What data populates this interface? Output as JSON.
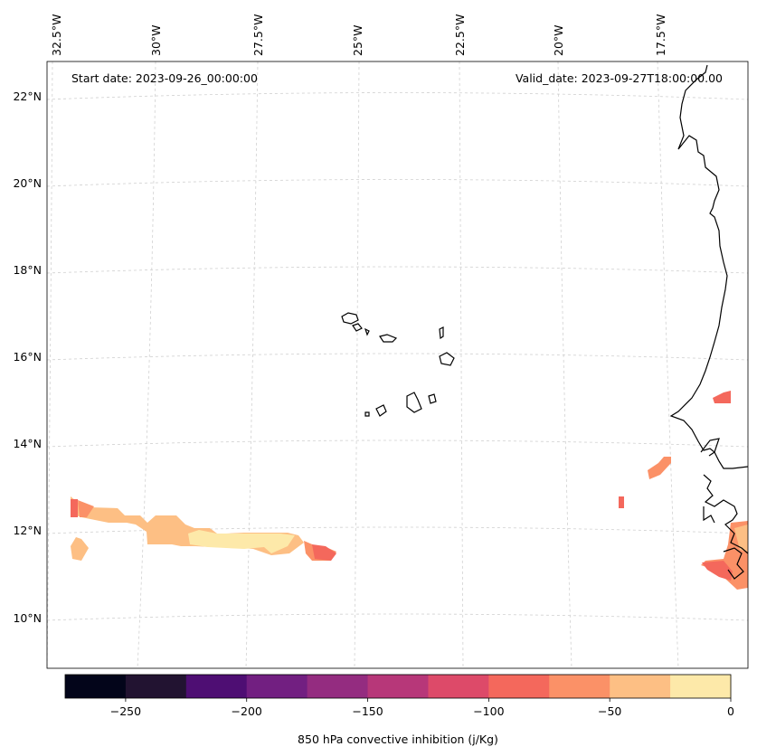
{
  "header": {
    "start_date": "Start date: 2023-09-26_00:00:00",
    "valid_date": "Valid_date: 2023-09-27T18:00:00.00"
  },
  "longitude_labels": [
    "32.5°W",
    "30°W",
    "27.5°W",
    "25°W",
    "22.5°W",
    "20°W",
    "17.5°W"
  ],
  "latitude_labels": [
    "22°N",
    "20°N",
    "18°N",
    "16°N",
    "14°N",
    "12°N",
    "10°N"
  ],
  "colorbar": {
    "label": "850 hPa convective inhibition (j/Kg)",
    "tick_labels": [
      "−250",
      "−200",
      "−150",
      "−100",
      "−50",
      "0"
    ],
    "levels": [
      -275,
      -250,
      -225,
      -200,
      -175,
      -150,
      -125,
      -100,
      -75,
      -50,
      -25,
      0
    ],
    "colors": [
      "#03051a",
      "#221331",
      "#4e0e73",
      "#721f81",
      "#942c80",
      "#b73779",
      "#dd4a69",
      "#f4685c",
      "#fb9167",
      "#fdbf84",
      "#fde9a9"
    ]
  },
  "colors": {
    "coastline": "#000000",
    "gridline": "#d0d0d0"
  }
}
